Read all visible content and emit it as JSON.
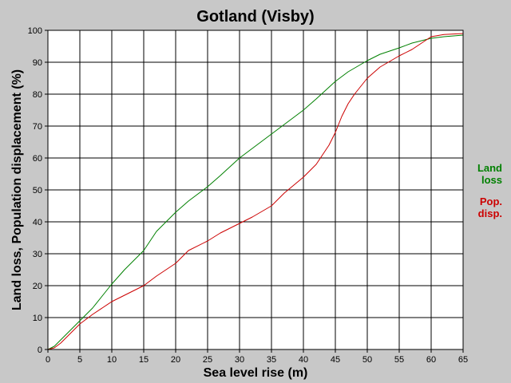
{
  "chart_data": {
    "type": "line",
    "title": "Gotland (Visby)",
    "xlabel": "Sea level rise (m)",
    "ylabel": "Land loss, Population displacement (%)",
    "xlim": [
      0,
      65
    ],
    "ylim": [
      0,
      100
    ],
    "xticks": [
      0,
      5,
      10,
      15,
      20,
      25,
      30,
      35,
      40,
      45,
      50,
      55,
      60,
      65
    ],
    "yticks": [
      0,
      10,
      20,
      30,
      40,
      50,
      60,
      70,
      80,
      90,
      100
    ],
    "grid": true,
    "legend_position": "right",
    "series": [
      {
        "name": "Land loss",
        "legend_lines": [
          "Land",
          "loss"
        ],
        "color": "#008000",
        "x": [
          0,
          1,
          2,
          3,
          5,
          7,
          10,
          12,
          15,
          17,
          20,
          22,
          25,
          27,
          30,
          32,
          35,
          37,
          40,
          42,
          45,
          47,
          50,
          52,
          55,
          57,
          60,
          62,
          65
        ],
        "y": [
          0,
          1,
          3,
          5,
          9,
          13,
          20.5,
          25,
          31,
          37,
          43,
          46.5,
          51,
          54.5,
          60,
          63,
          67.5,
          70.5,
          75,
          78.5,
          84,
          87,
          90.5,
          92.5,
          94.5,
          96,
          97.5,
          98,
          98.5
        ]
      },
      {
        "name": "Pop. disp.",
        "legend_lines": [
          "Pop.",
          "disp."
        ],
        "color": "#cc0000",
        "x": [
          0,
          1,
          2,
          3,
          5,
          7,
          10,
          12,
          15,
          17,
          20,
          22,
          25,
          27,
          30,
          32,
          35,
          37,
          40,
          42,
          44,
          45,
          46,
          47,
          48,
          50,
          52,
          55,
          57,
          60,
          62,
          65
        ],
        "y": [
          0,
          0.5,
          2,
          4,
          8,
          11,
          15,
          17,
          20,
          23,
          27,
          31,
          34,
          36.5,
          39.5,
          41.5,
          45,
          49,
          54,
          58,
          64,
          68,
          73,
          77,
          80,
          85,
          88.5,
          92,
          94,
          98,
          98.7,
          99
        ]
      }
    ]
  }
}
